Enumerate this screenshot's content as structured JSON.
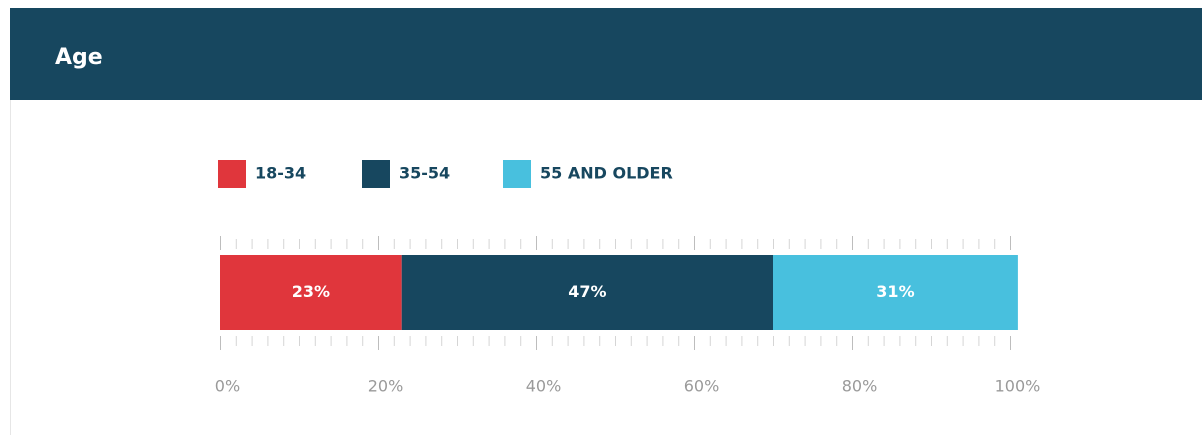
{
  "chart_data": {
    "type": "stacked_bar_horizontal",
    "title": "Age",
    "categories": [
      null
    ],
    "series": [
      {
        "name": "18-34",
        "color": "#e0363c",
        "values": [
          23
        ],
        "value_labels": [
          "23%"
        ]
      },
      {
        "name": "35-54",
        "color": "#17475f",
        "values": [
          47
        ],
        "value_labels": [
          "47%"
        ]
      },
      {
        "name": "55 AND OLDER",
        "color": "#48c0de",
        "values": [
          31
        ],
        "value_labels": [
          "31%"
        ]
      }
    ],
    "xlim": [
      0,
      100
    ],
    "xticks": [
      {
        "value": 0,
        "label": "0%"
      },
      {
        "value": 20,
        "label": "20%"
      },
      {
        "value": 40,
        "label": "40%"
      },
      {
        "value": 60,
        "label": "60%"
      },
      {
        "value": 80,
        "label": "80%"
      },
      {
        "value": 100,
        "label": "100%"
      }
    ],
    "xminor_step": 2,
    "legend": "top-left"
  }
}
